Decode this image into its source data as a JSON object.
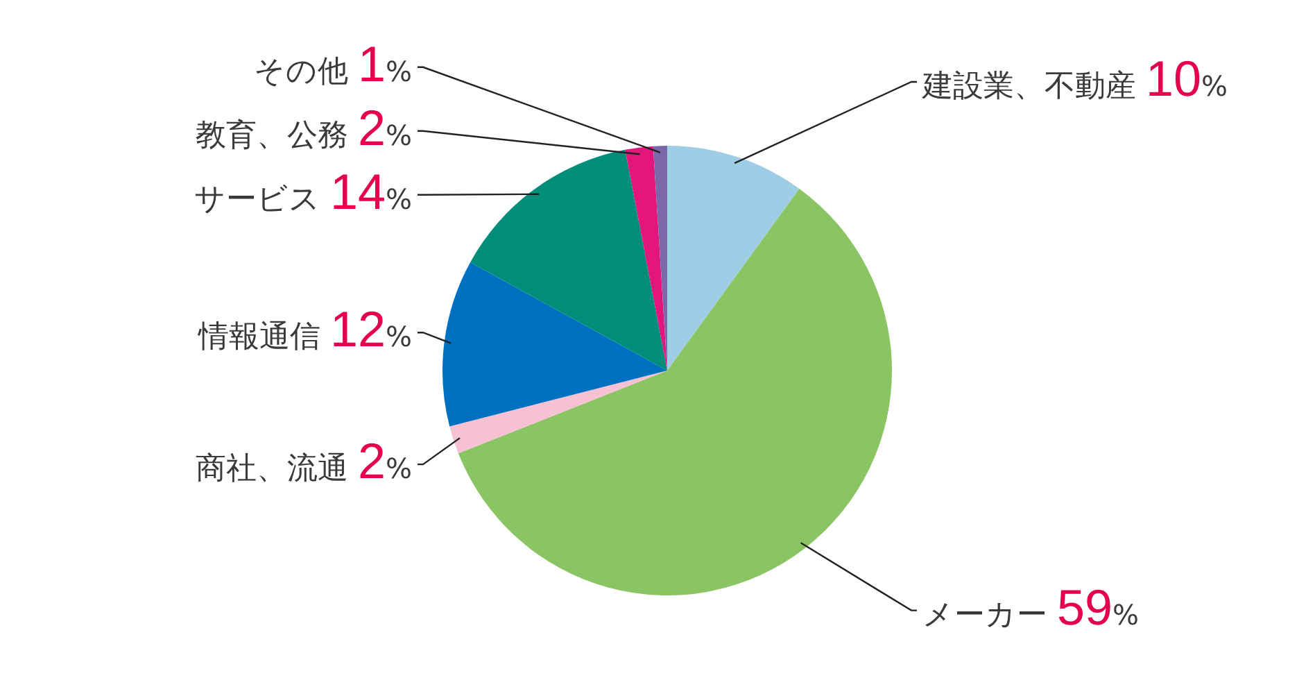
{
  "chart_data": {
    "type": "pie",
    "categories": [
      "建設業、不動産",
      "メーカー",
      "商社、流通",
      "情報通信",
      "サービス",
      "教育、公務",
      "その他"
    ],
    "values": [
      10,
      59,
      2,
      12,
      14,
      2,
      1
    ],
    "colors": [
      "#9fcde6",
      "#8bc463",
      "#f5c1d3",
      "#0071c1",
      "#008d79",
      "#e2167c",
      "#7b68a9"
    ],
    "value_labels": [
      "10%",
      "59%",
      "2%",
      "12%",
      "14%",
      "2%",
      "1%"
    ]
  }
}
